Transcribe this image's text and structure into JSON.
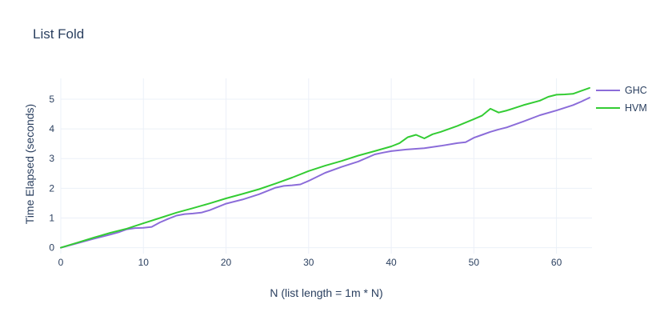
{
  "title": "List Fold",
  "colors": {
    "title_text": "#2a3f5f",
    "axis_text": "#2a3f5f",
    "tick_text": "#2a3f5f",
    "grid": "#ebf0f8",
    "background": "#ffffff",
    "ghc_line": "#8b6cd9",
    "hvm_line": "#33cc33"
  },
  "legend": {
    "items": [
      {
        "label": "GHC",
        "color": "#8b6cd9"
      },
      {
        "label": "HVM",
        "color": "#33cc33"
      }
    ]
  },
  "chart_data": {
    "type": "line",
    "title": "List Fold",
    "xlabel": "N (list length = 1m * N)",
    "ylabel": "Time Elapsed (seconds)",
    "xlim": [
      0,
      64.3
    ],
    "ylim": [
      -0.2,
      5.7
    ],
    "xticks": [
      0,
      10,
      20,
      30,
      40,
      50,
      60
    ],
    "yticks": [
      0,
      1,
      2,
      3,
      4,
      5
    ],
    "grid": true,
    "legend_position": "right",
    "series": [
      {
        "name": "GHC",
        "color": "#8b6cd9",
        "x": [
          0,
          2,
          4,
          6,
          7,
          8,
          9,
          10,
          11,
          12,
          13,
          14,
          15,
          16,
          17,
          18,
          20,
          22,
          24,
          26,
          27,
          28,
          29,
          30,
          32,
          34,
          36,
          38,
          39,
          40,
          42,
          44,
          46,
          48,
          49,
          50,
          51,
          52,
          53,
          54,
          56,
          58,
          60,
          62,
          63,
          64
        ],
        "y": [
          0,
          0.15,
          0.3,
          0.44,
          0.52,
          0.62,
          0.66,
          0.67,
          0.7,
          0.85,
          0.97,
          1.08,
          1.13,
          1.15,
          1.18,
          1.26,
          1.48,
          1.62,
          1.8,
          2.02,
          2.08,
          2.1,
          2.13,
          2.25,
          2.52,
          2.72,
          2.9,
          3.14,
          3.2,
          3.25,
          3.31,
          3.35,
          3.43,
          3.52,
          3.55,
          3.7,
          3.8,
          3.9,
          3.98,
          4.05,
          4.25,
          4.46,
          4.62,
          4.8,
          4.92,
          5.05
        ]
      },
      {
        "name": "HVM",
        "color": "#33cc33",
        "x": [
          0,
          2,
          4,
          6,
          8,
          10,
          12,
          14,
          16,
          18,
          20,
          22,
          24,
          26,
          28,
          30,
          32,
          34,
          36,
          38,
          40,
          41,
          42,
          43,
          44,
          45,
          46,
          48,
          50,
          51,
          52,
          53,
          54,
          56,
          58,
          59,
          60,
          61,
          62,
          63,
          64
        ],
        "y": [
          0,
          0.17,
          0.34,
          0.5,
          0.64,
          0.82,
          1.0,
          1.18,
          1.33,
          1.49,
          1.66,
          1.81,
          1.97,
          2.16,
          2.36,
          2.58,
          2.76,
          2.92,
          3.1,
          3.25,
          3.41,
          3.52,
          3.72,
          3.8,
          3.68,
          3.82,
          3.9,
          4.1,
          4.33,
          4.45,
          4.68,
          4.55,
          4.62,
          4.8,
          4.95,
          5.08,
          5.15,
          5.16,
          5.18,
          5.28,
          5.38
        ]
      }
    ]
  }
}
